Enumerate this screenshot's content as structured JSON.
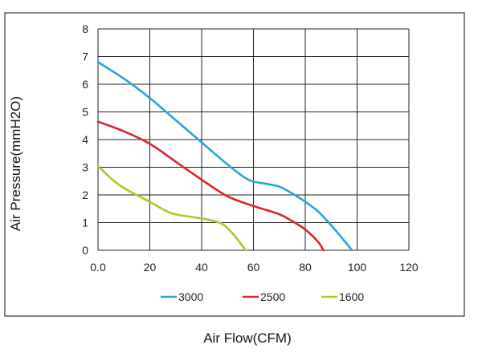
{
  "chart_data": {
    "type": "line",
    "xlabel": "Air Flow(CFM)",
    "ylabel": "Air Pressure(mmH2O)",
    "xlim": [
      0,
      120
    ],
    "ylim": [
      0,
      8
    ],
    "x_tick_labels": [
      "0.0",
      "20",
      "40",
      "60",
      "80",
      "100",
      "120"
    ],
    "y_tick_labels": [
      "0",
      "1",
      "2",
      "3",
      "4",
      "5",
      "6",
      "7",
      "8"
    ],
    "grid": true,
    "legend_position": "bottom",
    "series": [
      {
        "name": "3000",
        "color": "#29a3dd",
        "points": [
          [
            0,
            6.8
          ],
          [
            10,
            6.2
          ],
          [
            20,
            5.5
          ],
          [
            30,
            4.7
          ],
          [
            40,
            3.9
          ],
          [
            50,
            3.1
          ],
          [
            58,
            2.55
          ],
          [
            65,
            2.4
          ],
          [
            70,
            2.3
          ],
          [
            75,
            2.05
          ],
          [
            80,
            1.75
          ],
          [
            85,
            1.4
          ],
          [
            90,
            0.9
          ],
          [
            95,
            0.35
          ],
          [
            98,
            0
          ]
        ]
      },
      {
        "name": "2500",
        "color": "#d9262c",
        "points": [
          [
            0,
            4.65
          ],
          [
            10,
            4.3
          ],
          [
            20,
            3.85
          ],
          [
            30,
            3.2
          ],
          [
            40,
            2.55
          ],
          [
            50,
            1.95
          ],
          [
            60,
            1.6
          ],
          [
            70,
            1.3
          ],
          [
            75,
            1.05
          ],
          [
            80,
            0.75
          ],
          [
            85,
            0.3
          ],
          [
            87,
            0
          ]
        ]
      },
      {
        "name": "1600",
        "color": "#a9c92e",
        "points": [
          [
            0,
            3.05
          ],
          [
            5,
            2.6
          ],
          [
            10,
            2.25
          ],
          [
            20,
            1.75
          ],
          [
            28,
            1.35
          ],
          [
            35,
            1.22
          ],
          [
            42,
            1.12
          ],
          [
            48,
            0.95
          ],
          [
            52,
            0.6
          ],
          [
            55,
            0.25
          ],
          [
            57,
            0
          ]
        ]
      }
    ]
  }
}
